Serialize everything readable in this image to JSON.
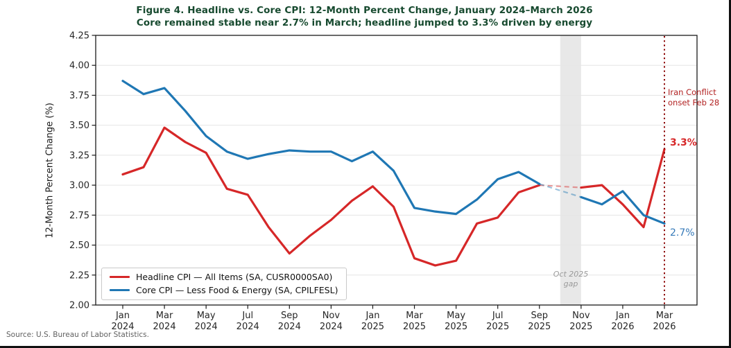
{
  "figure": {
    "title": "Figure 4. Headline vs. Core CPI: 12-Month Percent Change, January 2024–March 2026",
    "subtitle": "Core remained stable near 2.7% in March; headline jumped to 3.3% driven by energy",
    "source": "Source: U.S. Bureau of Labor Statistics."
  },
  "axes": {
    "y_label": "12-Month Percent Change (%)"
  },
  "legend": {
    "items": [
      {
        "label": "Headline CPI — All Items (SA, CUSR0000SA0)",
        "color": "#d62728"
      },
      {
        "label": "Core CPI — Less Food & Energy (SA, CPILFESL)",
        "color": "#1f77b4"
      }
    ]
  },
  "annotations": {
    "event_line_1": "Iran Conflict",
    "event_line_2": "onset Feb 28",
    "headline_end": "3.3%",
    "core_end": "2.7%",
    "gap_line_1": "Oct 2025",
    "gap_line_2": "gap"
  },
  "colors": {
    "title": "#174a2f",
    "headline": "#d62728",
    "core": "#1f77b4",
    "event_line": "#8b0000",
    "event_text": "#b22222",
    "end_label_core": "#3579b8",
    "gap_band": "#e8e8e8",
    "gap_text": "#999999",
    "grid": "#e5e5e5",
    "spine": "#1a1a1a",
    "tick_text": "#262626"
  },
  "chart_data": {
    "type": "line",
    "x": [
      "Jan 2024",
      "Feb 2024",
      "Mar 2024",
      "Apr 2024",
      "May 2024",
      "Jun 2024",
      "Jul 2024",
      "Aug 2024",
      "Sep 2024",
      "Oct 2024",
      "Nov 2024",
      "Dec 2024",
      "Jan 2025",
      "Feb 2025",
      "Mar 2025",
      "Apr 2025",
      "May 2025",
      "Jun 2025",
      "Jul 2025",
      "Aug 2025",
      "Sep 2025",
      "Oct 2025",
      "Nov 2025",
      "Dec 2025",
      "Jan 2026",
      "Feb 2026",
      "Mar 2026"
    ],
    "x_tick_indices": [
      0,
      2,
      4,
      6,
      8,
      10,
      12,
      14,
      16,
      18,
      20,
      22,
      24,
      26
    ],
    "ylim": [
      2.0,
      4.25
    ],
    "y_ticks": [
      2.0,
      2.25,
      2.5,
      2.75,
      3.0,
      3.25,
      3.5,
      3.75,
      4.0,
      4.25
    ],
    "grid": "horizontal",
    "legend_position": "lower-left",
    "series": [
      {
        "name": "Headline CPI — All Items (SA, CUSR0000SA0)",
        "color": "#d62728",
        "values": [
          3.09,
          3.15,
          3.48,
          3.36,
          3.27,
          2.97,
          2.92,
          2.65,
          2.43,
          2.58,
          2.71,
          2.87,
          2.99,
          2.82,
          2.39,
          2.33,
          2.37,
          2.68,
          2.73,
          2.94,
          3.0,
          null,
          2.98,
          3.0,
          2.84,
          2.65,
          3.3
        ]
      },
      {
        "name": "Core CPI — Less Food & Energy (SA, CPILFESL)",
        "color": "#1f77b4",
        "values": [
          3.87,
          3.76,
          3.81,
          3.62,
          3.41,
          3.28,
          3.22,
          3.26,
          3.29,
          3.28,
          3.28,
          3.2,
          3.28,
          3.12,
          2.81,
          2.78,
          2.76,
          2.88,
          3.05,
          3.11,
          3.01,
          null,
          2.9,
          2.84,
          2.95,
          2.75,
          2.68
        ]
      }
    ],
    "gap_band": {
      "label": "Oct 2025 gap",
      "start_index": 21,
      "end_index": 22
    },
    "event_line": {
      "index": 26,
      "label": "Iran Conflict onset Feb 28"
    },
    "end_labels": [
      {
        "series": "headline",
        "value": "3.3%"
      },
      {
        "series": "core",
        "value": "2.7%"
      }
    ]
  }
}
